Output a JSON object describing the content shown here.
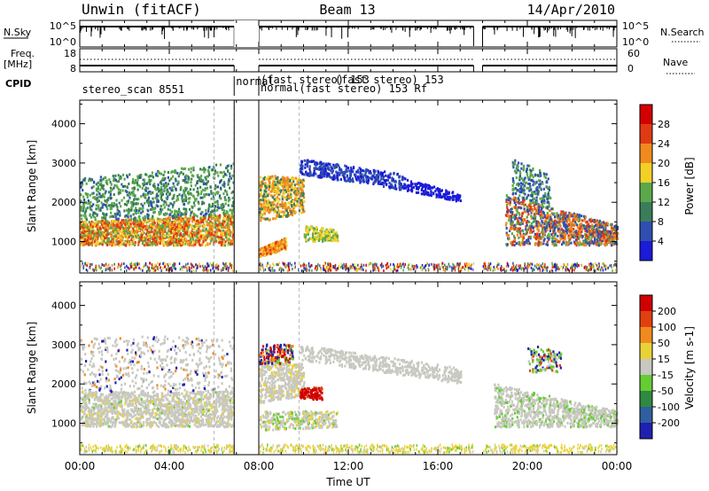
{
  "header": {
    "title_left": "Unwin (fitACF)",
    "title_center": "Beam 13",
    "title_right": "14/Apr/2010"
  },
  "top_panels": {
    "nsky_label": "N.Sky",
    "nsky_ticks": [
      "10^5",
      "10^0"
    ],
    "nsearch_label": "N.Search",
    "nsearch_ticks": [
      "10^5",
      "10^0"
    ],
    "freq_label": "Freq.",
    "freq_unit": "[MHz]",
    "freq_ticks": [
      "18",
      "8"
    ],
    "nave_label": "Nave",
    "nave_ticks": [
      "60",
      "0"
    ],
    "cpid_label": "CPID",
    "cpid_entries": [
      {
        "text": "stereo_scan 8551",
        "time": 0.1
      },
      {
        "text": "normal",
        "time": 6.9
      },
      {
        "text": "(fast stereo) 153",
        "time": 8.1
      },
      {
        "text": "normal",
        "time": 8.1
      },
      {
        "text": "(fast stereo) 153 Rf",
        "time": 9.8
      },
      {
        "text": "(fast stereo) 153",
        "time": 11.4
      }
    ]
  },
  "chart_data": [
    {
      "type": "heatmap",
      "name": "Power",
      "ylabel": "Slant Range [km]",
      "ylim": [
        200,
        4600
      ],
      "yticks": [
        1000,
        2000,
        3000,
        4000
      ],
      "xlim": [
        0,
        24
      ],
      "colorbar": {
        "label": "Power [dB]",
        "ticks": [
          "4",
          "8",
          "12",
          "16",
          "20",
          "24",
          "28"
        ],
        "colors": [
          "#1b1bd8",
          "#2f4fb0",
          "#3a7d5a",
          "#5aa84a",
          "#f2d028",
          "#f08a1e",
          "#e03a14",
          "#d40000"
        ]
      },
      "data_gaps": [
        [
          6.9,
          8.0
        ],
        [
          17.6,
          18.0
        ]
      ]
    },
    {
      "type": "heatmap",
      "name": "Velocity",
      "ylabel": "Slant Range [km]",
      "ylim": [
        200,
        4600
      ],
      "yticks": [
        1000,
        2000,
        3000,
        4000
      ],
      "xlim": [
        0,
        24
      ],
      "colorbar": {
        "label": "Velocity [m s-1]",
        "ticks": [
          "200",
          "100",
          "50",
          "15",
          "-15",
          "-50",
          "-100",
          "-200"
        ],
        "colors": [
          "#2020b0",
          "#2f5fa0",
          "#2f8a40",
          "#66cc33",
          "#c8c8c0",
          "#e8d23a",
          "#f08a1e",
          "#e04010",
          "#d00000"
        ]
      },
      "data_gaps": [
        [
          6.9,
          8.0
        ],
        [
          17.6,
          18.0
        ]
      ]
    }
  ],
  "x_axis": {
    "label": "Time UT",
    "ticks": [
      "00:00",
      "04:00",
      "08:00",
      "12:00",
      "16:00",
      "20:00",
      "00:00"
    ]
  }
}
